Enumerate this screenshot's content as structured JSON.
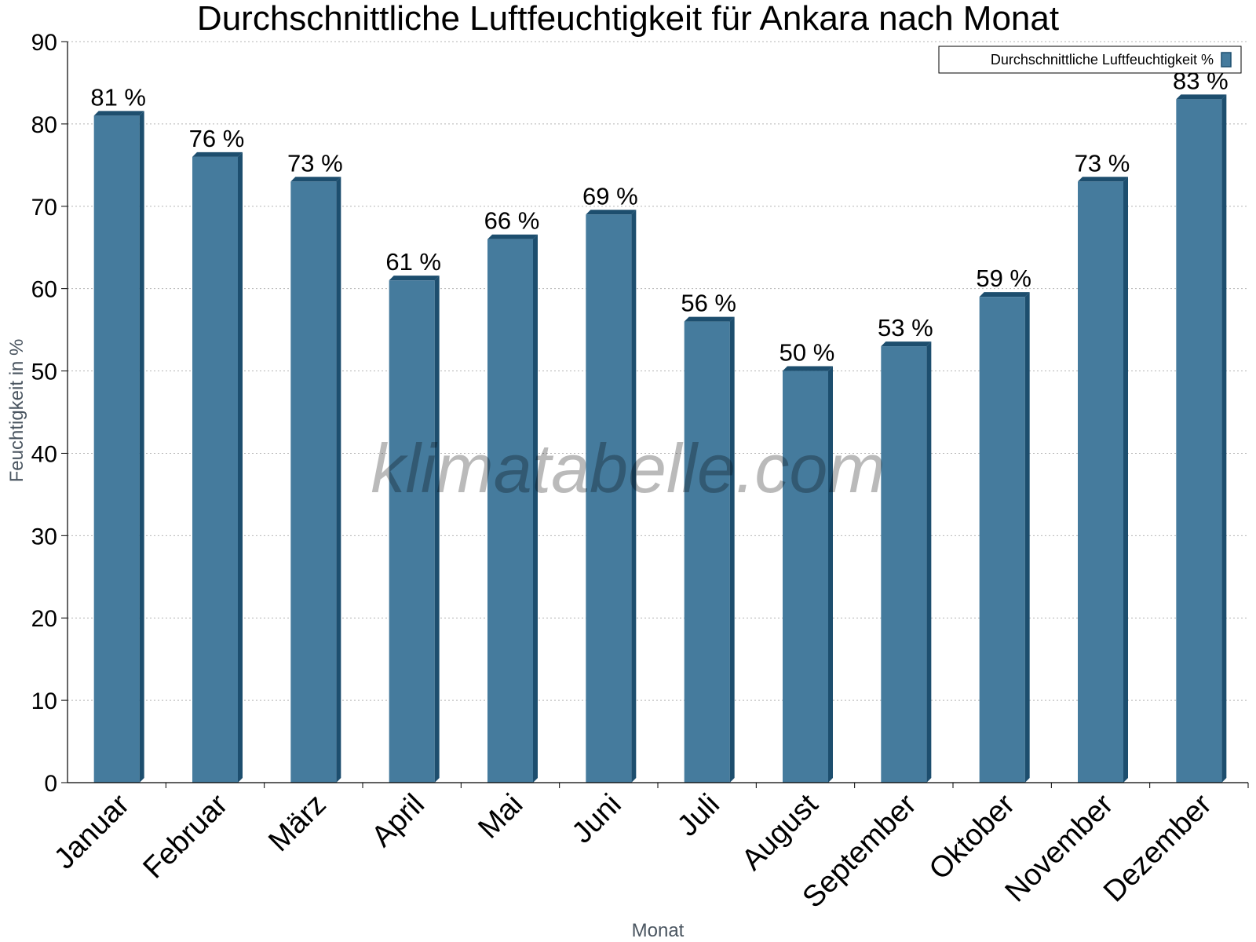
{
  "chart_data": {
    "type": "bar",
    "title": "Durchschnittliche Luftfeuchtigkeit für Ankara nach Monat",
    "xlabel": "Monat",
    "ylabel": "Feuchtigkeit in %",
    "ylim": [
      0,
      90
    ],
    "yticks": [
      0,
      10,
      20,
      30,
      40,
      50,
      60,
      70,
      80,
      90
    ],
    "grid": true,
    "legend_position": "top-right",
    "categories": [
      "Januar",
      "Februar",
      "März",
      "April",
      "Mai",
      "Juni",
      "Juli",
      "August",
      "September",
      "Oktober",
      "November",
      "Dezember"
    ],
    "series": [
      {
        "name": "Durchschnittliche Luftfeuchtigkeit %",
        "values": [
          81,
          76,
          73,
          61,
          66,
          69,
          56,
          50,
          53,
          59,
          73,
          83
        ],
        "data_labels": [
          "81 %",
          "76 %",
          "73 %",
          "61 %",
          "66 %",
          "69 %",
          "56 %",
          "50 %",
          "53 %",
          "59 %",
          "73 %",
          "83 %"
        ],
        "color": "#457b9d",
        "side_color": "#1d4e6e"
      }
    ],
    "watermark": "klimatabelle.com"
  }
}
